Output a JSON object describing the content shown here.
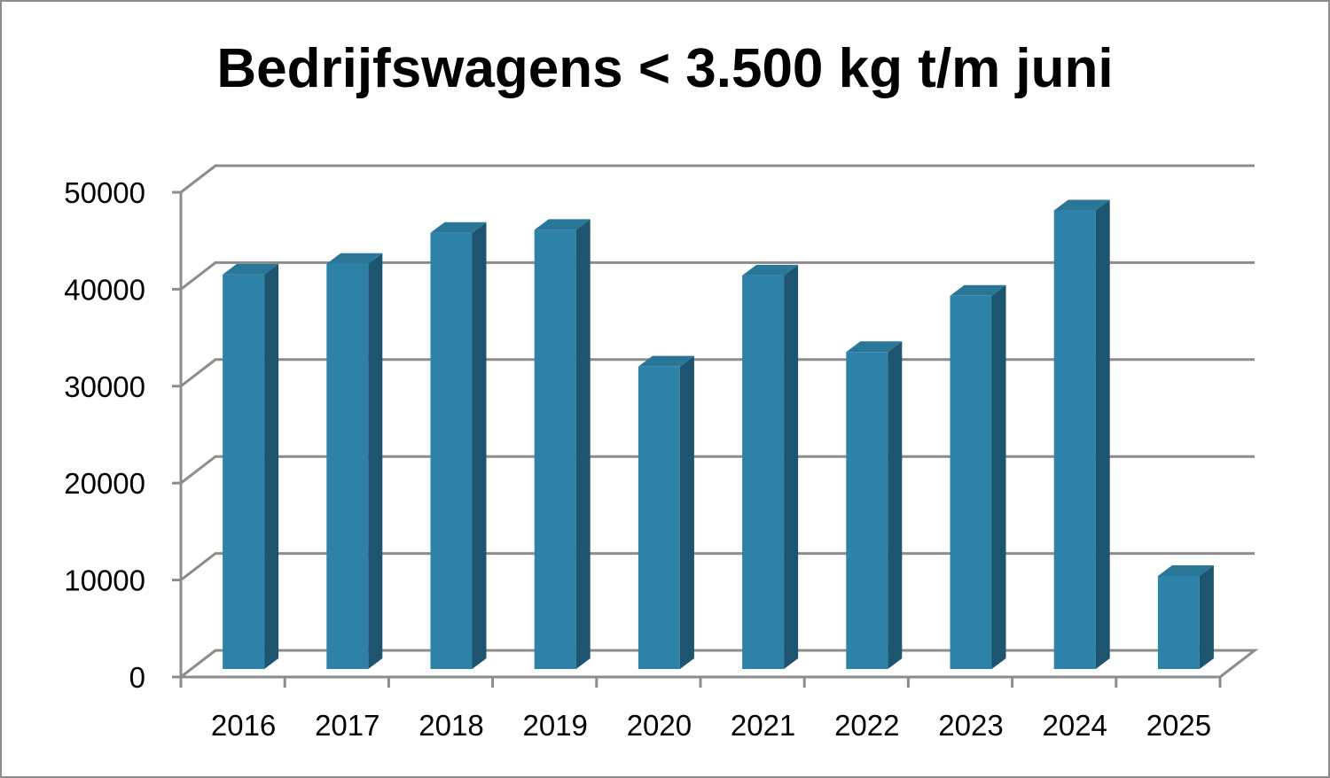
{
  "chart_data": {
    "type": "bar",
    "title": "Bedrijfswagens < 3.500 kg t/m juni",
    "xlabel": "",
    "ylabel": "",
    "categories": [
      "2016",
      "2017",
      "2018",
      "2019",
      "2020",
      "2021",
      "2022",
      "2023",
      "2024",
      "2025"
    ],
    "values": [
      40700,
      41800,
      45000,
      45300,
      31200,
      40600,
      32700,
      38500,
      47300,
      9600
    ],
    "ylim": [
      0,
      50000
    ],
    "yticks": [
      "0",
      "10000",
      "20000",
      "30000",
      "40000",
      "50000"
    ],
    "grid": true,
    "style": "3d",
    "legend": "none"
  },
  "colors": {
    "bar_front": "#2e81a7",
    "bar_side": "#1d5570",
    "bar_top": "#2a7699",
    "grid": "#8c8c8c",
    "frame": "#8c8c8c"
  }
}
